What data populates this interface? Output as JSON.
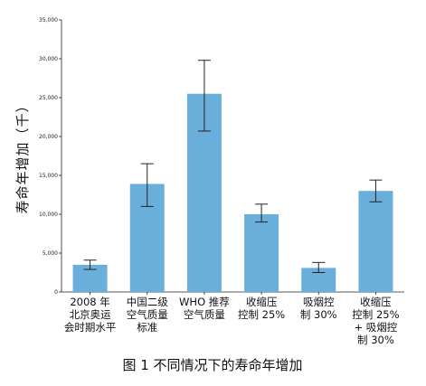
{
  "chart_data": {
    "type": "bar",
    "title": "",
    "caption": "图 1  不同情况下的寿命年增加",
    "ylabel": "寿命年增加（千）",
    "xlabel": "",
    "ylim": [
      0,
      35000
    ],
    "yticks": [
      0,
      5000,
      10000,
      15000,
      20000,
      25000,
      30000,
      35000
    ],
    "ytick_labels": [
      "0",
      "5,000",
      "10,000",
      "15,000",
      "20,000",
      "25,000",
      "30,000",
      "35,000"
    ],
    "categories": [
      [
        "2008 年",
        "北京奥运",
        "会时期水平"
      ],
      [
        "中国二级",
        "空气质量",
        "标准"
      ],
      [
        "WHO 推荐",
        "空气质量"
      ],
      [
        "收缩压",
        "控制 25%"
      ],
      [
        "吸烟控",
        "制 30%"
      ],
      [
        "收缩压",
        "控制 25%",
        "+ 吸烟控",
        "制 30%"
      ]
    ],
    "values": [
      3500,
      13900,
      25500,
      10000,
      3100,
      13000
    ],
    "error_low": [
      2900,
      11000,
      20700,
      9000,
      2500,
      11600
    ],
    "error_high": [
      4100,
      16500,
      29800,
      11300,
      3800,
      14400
    ],
    "bar_color": "#6aaedb",
    "grid": false,
    "legend": "none"
  }
}
